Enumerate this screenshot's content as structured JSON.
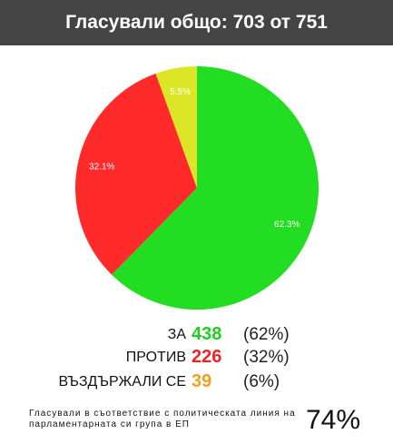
{
  "chart_data": {
    "type": "pie",
    "title": "Гласували общо: 703 от 751",
    "categories": [
      "ЗА",
      "ПРОТИВ",
      "ВЪЗДЪРЖАЛИ СЕ"
    ],
    "values": [
      62.3,
      32.1,
      5.5
    ],
    "value_labels": [
      "62.3%",
      "32.1%",
      "5.5%"
    ],
    "colors": [
      "#22dd22",
      "#ff2a2a",
      "#dde626"
    ],
    "counts": [
      438,
      226,
      39
    ],
    "count_colors": [
      "#22cc22",
      "#ee2222",
      "#f0a020"
    ],
    "shares": [
      "(62%)",
      "(32%)",
      "(6%)"
    ]
  },
  "footer": {
    "text": "Гласували в съответствие с политическата линия на парламентарната си група в ЕП",
    "value": "74%"
  }
}
